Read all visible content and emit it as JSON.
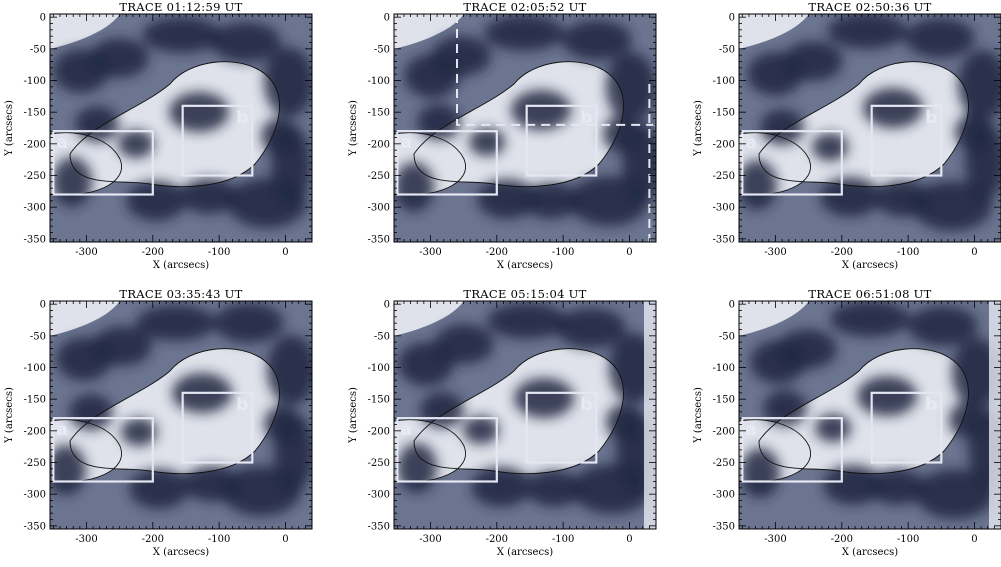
{
  "figure": {
    "xlabel": "X (arcsecs)",
    "ylabel": "Y (arcsecs)",
    "xticks": [
      "-300",
      "-200",
      "-100",
      "0"
    ],
    "yticks": [
      "0",
      "-50",
      "-100",
      "-150",
      "-200",
      "-250",
      "-300",
      "-350"
    ],
    "box_labels": [
      "a",
      "b"
    ],
    "panels": [
      {
        "title": "TRACE 01:12:59 UT"
      },
      {
        "title": "TRACE 02:05:52 UT"
      },
      {
        "title": "TRACE 02:50:36 UT"
      },
      {
        "title": "TRACE 03:35:43 UT"
      },
      {
        "title": "TRACE 05:15:04 UT"
      },
      {
        "title": "TRACE 06:51:08 UT"
      }
    ]
  },
  "colors": {
    "background_quiet": "#dfe2ea",
    "dark_region": "#1e2640",
    "mid_region": "#6c7590",
    "contour": "#111111",
    "box_outline": "#e4e7f2"
  }
}
